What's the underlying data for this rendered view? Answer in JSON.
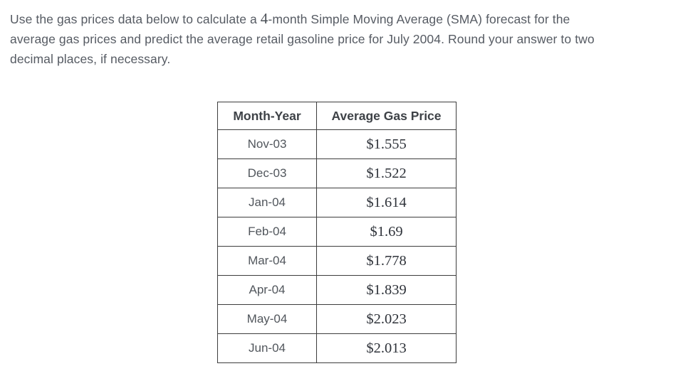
{
  "question": {
    "line1_before": "Use the gas prices data below to calculate a ",
    "line1_number": "4",
    "line1_after": "-month Simple Moving Average (SMA) forecast for the",
    "line2": "average gas prices and predict the average retail gasoline price for July 2004. Round your answer to two",
    "line3": "decimal places, if necessary."
  },
  "table": {
    "headers": [
      "Month-Year",
      "Average Gas Price"
    ],
    "rows": [
      {
        "month": "Nov-03",
        "price": "$1.555"
      },
      {
        "month": "Dec-03",
        "price": "$1.522"
      },
      {
        "month": "Jan-04",
        "price": "$1.614"
      },
      {
        "month": "Feb-04",
        "price": "$1.69"
      },
      {
        "month": "Mar-04",
        "price": "$1.778"
      },
      {
        "month": "Apr-04",
        "price": "$1.839"
      },
      {
        "month": "May-04",
        "price": "$2.023"
      },
      {
        "month": "Jun-04",
        "price": "$2.013"
      }
    ]
  },
  "colors": {
    "body_text": "#565b63",
    "table_border": "#3d3d3d",
    "header_text": "#3e4247",
    "price_text": "#2f333a"
  }
}
